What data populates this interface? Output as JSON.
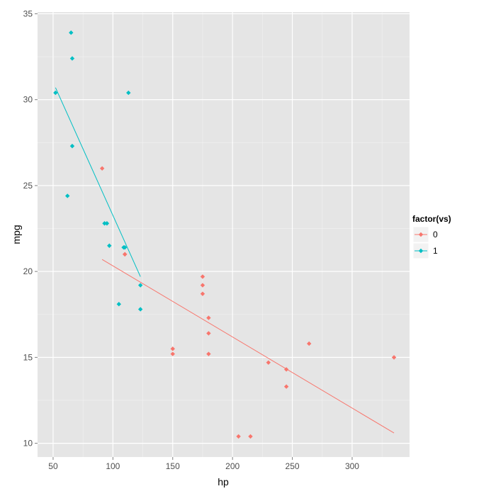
{
  "chart_data": {
    "type": "scatter",
    "xlabel": "hp",
    "ylabel": "mpg",
    "xlim": [
      37,
      348
    ],
    "ylim": [
      9.2,
      35.1
    ],
    "x_ticks": [
      50,
      100,
      150,
      200,
      250,
      300
    ],
    "y_ticks": [
      10,
      15,
      20,
      25,
      30,
      35
    ],
    "grid": true,
    "legend": {
      "title": "factor(vs)",
      "position": "right",
      "entries": [
        "0",
        "1"
      ]
    },
    "series": [
      {
        "name": "0",
        "color": "#F8766D",
        "points": [
          {
            "x": 110,
            "y": 21.0
          },
          {
            "x": 110,
            "y": 21.0
          },
          {
            "x": 175,
            "y": 18.7
          },
          {
            "x": 245,
            "y": 14.3
          },
          {
            "x": 180,
            "y": 16.4
          },
          {
            "x": 180,
            "y": 17.3
          },
          {
            "x": 180,
            "y": 15.2
          },
          {
            "x": 205,
            "y": 10.4
          },
          {
            "x": 215,
            "y": 10.4
          },
          {
            "x": 230,
            "y": 14.7
          },
          {
            "x": 150,
            "y": 15.5
          },
          {
            "x": 150,
            "y": 15.2
          },
          {
            "x": 245,
            "y": 13.3
          },
          {
            "x": 175,
            "y": 19.2
          },
          {
            "x": 91,
            "y": 26.0
          },
          {
            "x": 264,
            "y": 15.8
          },
          {
            "x": 175,
            "y": 19.7
          },
          {
            "x": 335,
            "y": 15.0
          }
        ],
        "fit_line": [
          {
            "x": 91,
            "y": 20.7
          },
          {
            "x": 335,
            "y": 10.6
          }
        ]
      },
      {
        "name": "1",
        "color": "#00BFC4",
        "points": [
          {
            "x": 93,
            "y": 22.8
          },
          {
            "x": 110,
            "y": 21.4
          },
          {
            "x": 105,
            "y": 18.1
          },
          {
            "x": 62,
            "y": 24.4
          },
          {
            "x": 95,
            "y": 22.8
          },
          {
            "x": 123,
            "y": 19.2
          },
          {
            "x": 123,
            "y": 17.8
          },
          {
            "x": 66,
            "y": 32.4
          },
          {
            "x": 52,
            "y": 30.4
          },
          {
            "x": 65,
            "y": 33.9
          },
          {
            "x": 97,
            "y": 21.5
          },
          {
            "x": 66,
            "y": 27.3
          },
          {
            "x": 113,
            "y": 30.4
          },
          {
            "x": 109,
            "y": 21.4
          }
        ],
        "fit_line": [
          {
            "x": 52,
            "y": 30.7
          },
          {
            "x": 123,
            "y": 19.7
          }
        ]
      }
    ]
  }
}
